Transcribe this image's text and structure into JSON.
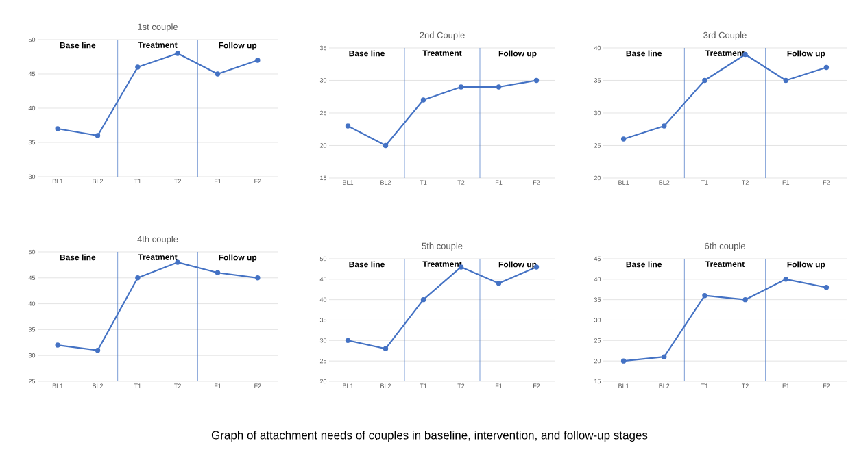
{
  "chart_data": [
    {
      "type": "line",
      "title": "1st couple",
      "categories": [
        "BL1",
        "BL2",
        "T1",
        "T2",
        "F1",
        "F2"
      ],
      "series": [
        {
          "color": "#4472c4",
          "values": [
            37,
            36,
            46,
            48,
            45,
            47
          ]
        }
      ],
      "ylim": [
        30,
        50
      ],
      "yticks": [
        30,
        35,
        40,
        45,
        50
      ],
      "grid": "y",
      "marker": "circle",
      "annotations": [
        "Base line",
        "Treatment",
        "Follow up"
      ]
    },
    {
      "type": "line",
      "title": "2nd Couple",
      "categories": [
        "BL1",
        "BL2",
        "T1",
        "T2",
        "F1",
        "F2"
      ],
      "series": [
        {
          "color": "#4472c4",
          "values": [
            23,
            20,
            27,
            29,
            29,
            30
          ]
        }
      ],
      "ylim": [
        15,
        35
      ],
      "yticks": [
        15,
        20,
        25,
        30,
        35
      ],
      "grid": "y",
      "marker": "circle",
      "annotations": [
        "Base line",
        "Treatment",
        "Follow up"
      ]
    },
    {
      "type": "line",
      "title": "3rd Couple",
      "categories": [
        "BL1",
        "BL2",
        "T1",
        "T2",
        "F1",
        "F2"
      ],
      "series": [
        {
          "color": "#4472c4",
          "values": [
            26,
            28,
            35,
            39,
            35,
            37
          ]
        }
      ],
      "ylim": [
        20,
        40
      ],
      "yticks": [
        20,
        25,
        30,
        35,
        40
      ],
      "grid": "y",
      "marker": "circle",
      "annotations": [
        "Base line",
        "Treatment",
        "Follow up"
      ]
    },
    {
      "type": "line",
      "title": "4th couple",
      "categories": [
        "BL1",
        "BL2",
        "T1",
        "T2",
        "F1",
        "F2"
      ],
      "series": [
        {
          "color": "#4472c4",
          "values": [
            32,
            31,
            45,
            48,
            46,
            45
          ]
        }
      ],
      "ylim": [
        25,
        50
      ],
      "yticks": [
        25,
        30,
        35,
        40,
        45,
        50
      ],
      "grid": "y",
      "marker": "circle",
      "annotations": [
        "Base line",
        "Treatment",
        "Follow up"
      ]
    },
    {
      "type": "line",
      "title": "5th couple",
      "categories": [
        "BL1",
        "BL2",
        "T1",
        "T2",
        "F1",
        "F2"
      ],
      "series": [
        {
          "color": "#4472c4",
          "values": [
            30,
            28,
            40,
            48,
            44,
            48
          ]
        }
      ],
      "ylim": [
        20,
        50
      ],
      "yticks": [
        20,
        25,
        30,
        35,
        40,
        45,
        50
      ],
      "grid": "y",
      "marker": "circle",
      "annotations": [
        "Base line",
        "Treatment",
        "Follow up"
      ]
    },
    {
      "type": "line",
      "title": "6th couple",
      "categories": [
        "BL1",
        "BL2",
        "T1",
        "T2",
        "F1",
        "F2"
      ],
      "series": [
        {
          "color": "#4472c4",
          "values": [
            20,
            21,
            36,
            35,
            40,
            38
          ]
        }
      ],
      "ylim": [
        15,
        45
      ],
      "yticks": [
        15,
        20,
        25,
        30,
        35,
        40,
        45
      ],
      "grid": "y",
      "marker": "circle",
      "annotations": [
        "Base line",
        "Treatment",
        "Follow up"
      ]
    },
    {
      "type": "other",
      "title": "Graph of attachment needs of couples in baseline, intervention, and follow-up stages"
    }
  ]
}
